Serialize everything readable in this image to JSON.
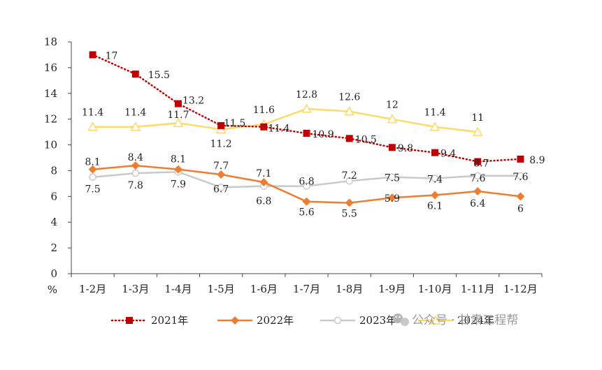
{
  "chart_data": {
    "type": "line",
    "categories": [
      "1-2月",
      "1-3月",
      "1-4月",
      "1-5月",
      "1-6月",
      "1-7月",
      "1-8月",
      "1-9月",
      "1-10月",
      "1-11月",
      "1-12月"
    ],
    "ylabel": "%",
    "ylim": [
      0,
      18
    ],
    "yticks": [
      "0",
      "2",
      "4",
      "6",
      "8",
      "10",
      "12",
      "14",
      "16",
      "18"
    ],
    "grid": false,
    "legend_position": "bottom",
    "series": [
      {
        "name": "2021年",
        "color": "#c00000",
        "marker": "square",
        "line": "dotted",
        "values": [
          17,
          15.5,
          13.2,
          11.5,
          11.4,
          10.9,
          10.5,
          9.8,
          9.4,
          8.7,
          8.9
        ],
        "labels": [
          "17",
          "15.5",
          "13.2",
          "11.5",
          "11.4",
          "10.9",
          "10.5",
          "9.8",
          "9.4",
          "8.7",
          "8.9"
        ]
      },
      {
        "name": "2022年",
        "color": "#ed7d31",
        "marker": "diamond",
        "line": "solid",
        "values": [
          8.1,
          8.4,
          8.1,
          7.7,
          7.1,
          5.6,
          5.5,
          5.9,
          6.1,
          6.4,
          6
        ],
        "labels": [
          "8.1",
          "8.4",
          "8.1",
          "7.7",
          "7.1",
          "5.6",
          "5.5",
          "5.9",
          "6.1",
          "6.4",
          "6"
        ]
      },
      {
        "name": "2023年",
        "color": "#c9c9c9",
        "marker": "circle",
        "line": "solid",
        "values": [
          7.5,
          7.8,
          7.9,
          6.7,
          6.8,
          6.8,
          7.2,
          7.5,
          7.4,
          7.6,
          7.6
        ],
        "labels": [
          "7.5",
          "7.8",
          "7.9",
          "6.7",
          "6.8",
          "6.8",
          "7.2",
          "7.5",
          "7.4",
          "7.6",
          "7.6"
        ]
      },
      {
        "name": "2024年",
        "color": "#ffd966",
        "marker": "triangle",
        "line": "solid",
        "values": [
          11.4,
          11.4,
          11.7,
          11.2,
          11.6,
          12.8,
          12.6,
          12,
          11.4,
          11,
          null
        ],
        "labels": [
          "11.4",
          "11.4",
          "11.7",
          "11.2",
          "11.6",
          "12.8",
          "12.6",
          "12",
          "11.4",
          "11",
          null
        ]
      }
    ]
  },
  "watermark": "公众号 · 甘肃工程帮",
  "watermark_icon": "wechat-icon"
}
